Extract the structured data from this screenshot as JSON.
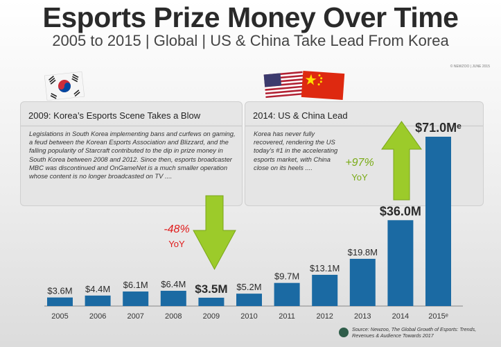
{
  "title": "Esports Prize Money Over Time",
  "subtitle": "2005 to 2015 | Global | US & China Take Lead From Korea",
  "credit": "© NEWZOO | JUNE 2015",
  "boxes": [
    {
      "title": "2009: Korea’s Esports Scene Takes a Blow",
      "body": "Legislations in South Korea implementing bans and curfews on gaming, a feud between the Korean Esports Association and Blizzard, and the falling popularity of Starcraft contributed to the dip in prize money in South Korea between 2008 and 2012. Since then, esports broadcaster MBC was discontinued and OnGameNet is a much smaller operation whose content is no longer broadcasted on TV ...."
    },
    {
      "title": "2014: US & China Lead",
      "body": "Korea has never fully recovered, rendering the US today’s #1 in the accelerating esports market, with China close on its heels ...."
    }
  ],
  "annotations": {
    "decline": {
      "pct": "-48%",
      "label": "YoY",
      "color": "#e01b1b"
    },
    "growth": {
      "pct": "+97%",
      "label": "YoY",
      "color": "#7aab16"
    }
  },
  "source": "Source: Newzoo, The Global Growth of Esports: Trends, Revenues & Audience Towards 2017",
  "colors": {
    "bar": "#1b6aa3",
    "bar_dark": "#125487",
    "arrow": "#9ccb2a",
    "arrow_dark": "#7aa51a"
  },
  "icons": [
    "south-korea-flag-icon",
    "usa-flag-icon",
    "china-flag-icon",
    "newzoo-logo-icon"
  ],
  "chart_data": {
    "type": "bar",
    "categories": [
      "2005",
      "2006",
      "2007",
      "2008",
      "2009",
      "2010",
      "2011",
      "2012",
      "2013",
      "2014",
      "2015ᵉ"
    ],
    "values": [
      3.6,
      4.4,
      6.1,
      6.4,
      3.5,
      5.2,
      9.7,
      13.1,
      19.8,
      36.0,
      71.0
    ],
    "labels": [
      "$3.6M",
      "$4.4M",
      "$6.1M",
      "$6.4M",
      "$3.5M",
      "$5.2M",
      "$9.7M",
      "$13.1M",
      "$19.8M",
      "$36.0M",
      "$71.0Mᵉ"
    ],
    "title": "Esports Prize Money Over Time",
    "xlabel": "",
    "ylabel": "",
    "ylim": [
      0,
      71
    ],
    "grid": false,
    "legend": "none"
  }
}
